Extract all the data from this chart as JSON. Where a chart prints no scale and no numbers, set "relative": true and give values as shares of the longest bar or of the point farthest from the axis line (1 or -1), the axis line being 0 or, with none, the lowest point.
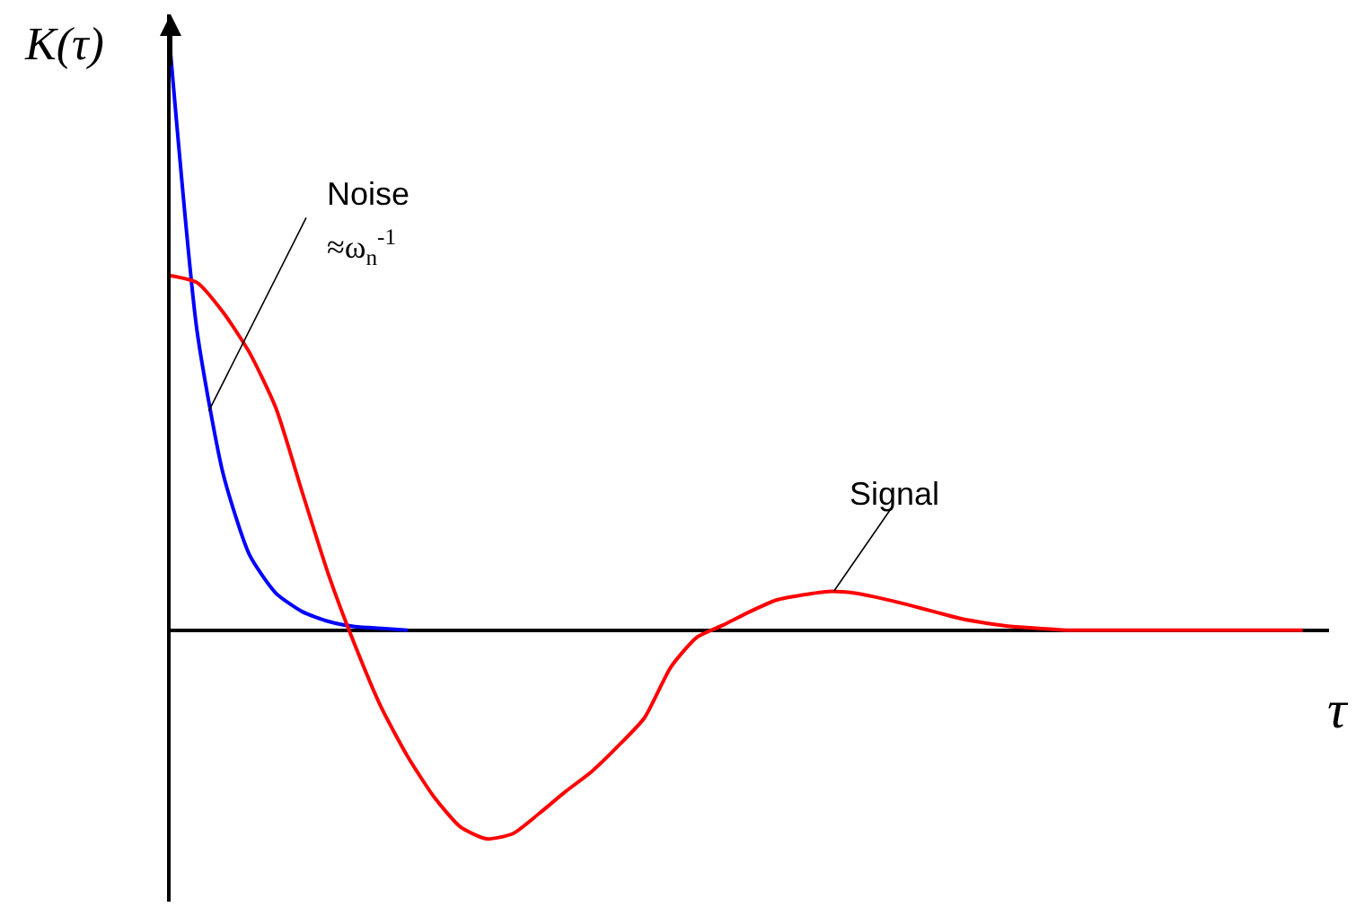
{
  "chart_data": {
    "type": "line",
    "relative": true,
    "xlabel": "τ",
    "ylabel": "K(τ)",
    "tick_labels": false,
    "marker": "none",
    "line_style": "solid",
    "categories": [
      null,
      null,
      null,
      null,
      null,
      null,
      null,
      null,
      null,
      null,
      null,
      null,
      null,
      null,
      null,
      null,
      null,
      null,
      null,
      null,
      null,
      null,
      null,
      null,
      null,
      null,
      null,
      null,
      null,
      null,
      null,
      null,
      null,
      null,
      null,
      null,
      null,
      null,
      null,
      null,
      null,
      null,
      null,
      null
    ],
    "series": [
      {
        "color": "#0000ff",
        "values": [
          1.0,
          0.52,
          0.27,
          0.13,
          0.064,
          0.032,
          0.015,
          0.006,
          0.003,
          0,
          null,
          null,
          null,
          null,
          null,
          null,
          null,
          null,
          null,
          null,
          null,
          null,
          null,
          null,
          null,
          null,
          null,
          null,
          null,
          null,
          null,
          null,
          null,
          null,
          null,
          null,
          null,
          null,
          null,
          null,
          null,
          null,
          null,
          null
        ]
      },
      {
        "color": "#ff0000",
        "values": [
          0.615,
          0.603,
          0.551,
          0.481,
          0.385,
          0.239,
          0.096,
          -0.026,
          -0.134,
          -0.219,
          -0.289,
          -0.341,
          -0.362,
          -0.353,
          -0.318,
          -0.28,
          -0.245,
          -0.201,
          -0.152,
          -0.064,
          -0.012,
          0.009,
          0.032,
          0.052,
          0.061,
          0.067,
          0.064,
          0.055,
          0.044,
          0.032,
          0.02,
          0.012,
          0.006,
          0.003,
          0,
          0,
          0,
          0,
          0,
          0,
          0,
          0,
          0,
          0
        ]
      }
    ],
    "annotations": [
      "Noise",
      "≈ω$_{n}$$^{-1}$",
      "Signal"
    ]
  }
}
